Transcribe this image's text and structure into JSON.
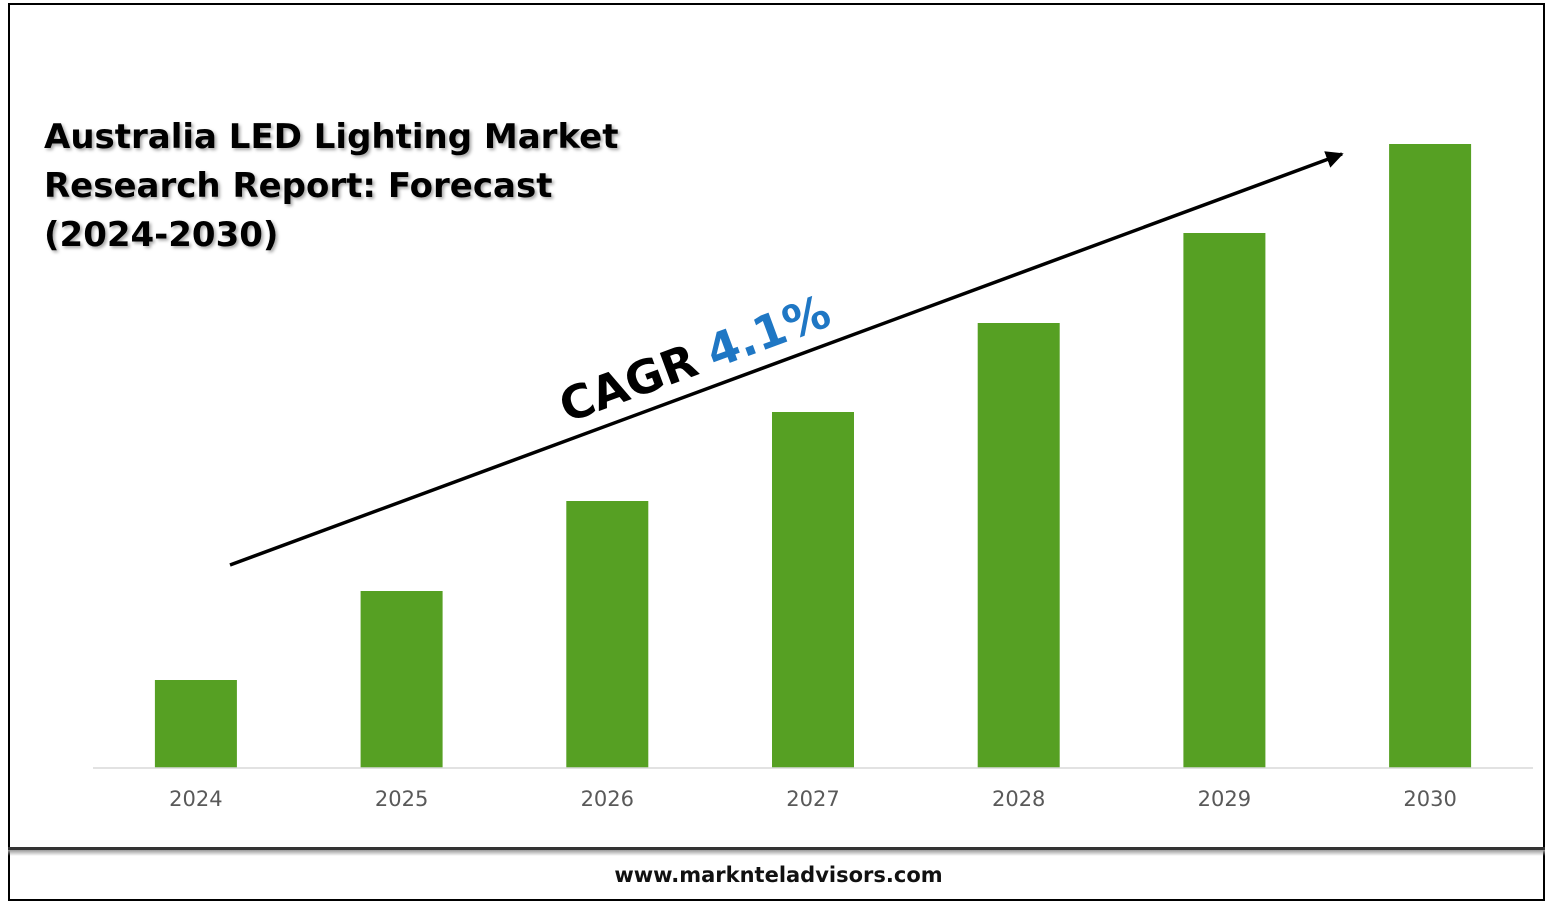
{
  "footer": {
    "url": "www.marknteladvisors.com"
  },
  "colors": {
    "bar": "#56a023",
    "axis": "#d9d9d9",
    "cagr_value": "#1f77c4",
    "text": "#000000"
  },
  "chart_data": {
    "type": "bar",
    "title": "Australia LED Lighting Market Research Report: Forecast (2024-2030)",
    "xlabel": "",
    "ylabel": "",
    "categories": [
      "2024",
      "2025",
      "2026",
      "2027",
      "2028",
      "2029",
      "2030"
    ],
    "values": [
      88,
      177,
      267,
      356,
      445,
      535,
      624
    ],
    "ylim": [
      0,
      640
    ],
    "grid": false,
    "legend": "none",
    "annotation": {
      "label": "CAGR",
      "value": "4.1%"
    }
  }
}
